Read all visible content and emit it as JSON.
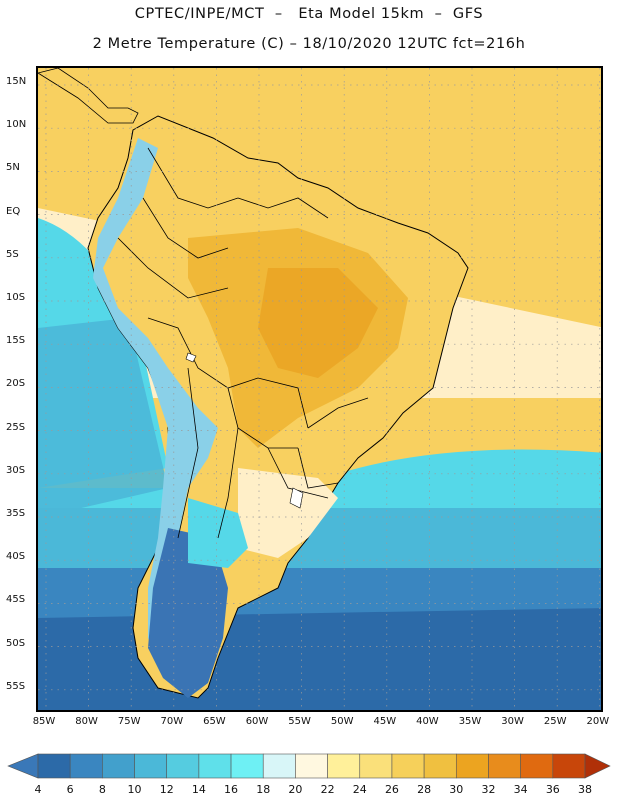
{
  "header": {
    "title_line1": "CPTEC/INPE/MCT  –   Eta Model 15km  –  GFS",
    "title_line2": "2 Metre Temperature (C) – 18/10/2020 12UTC fct=216h"
  },
  "map": {
    "lat_labels": [
      "15N",
      "10N",
      "5N",
      "EQ",
      "5S",
      "10S",
      "15S",
      "20S",
      "25S",
      "30S",
      "35S",
      "40S",
      "45S",
      "50S",
      "55S"
    ],
    "lon_labels": [
      "85W",
      "80W",
      "75W",
      "70W",
      "65W",
      "60W",
      "55W",
      "50W",
      "45W",
      "40W",
      "35W",
      "30W",
      "25W",
      "20W"
    ],
    "colors": {
      "ocean_cold": "#2c6aa8",
      "ocean_cool": "#3a86c0",
      "ocean_mid": "#4bb8d8",
      "ocean_warm": "#55d8e8",
      "pale": "#ffefc8",
      "warm": "#f8d060",
      "hot": "#f0b838",
      "hotter": "#e8a020",
      "andes": "#8ad0e8",
      "patagonia": "#3a74b4"
    }
  },
  "colorbar": {
    "labels": [
      "4",
      "6",
      "8",
      "10",
      "12",
      "14",
      "16",
      "18",
      "20",
      "22",
      "24",
      "26",
      "28",
      "30",
      "32",
      "34",
      "36",
      "38"
    ],
    "colors": [
      "#3a78b8",
      "#2c6aa8",
      "#3a86c0",
      "#42a0cc",
      "#4bb8d8",
      "#55cce0",
      "#5fe0ea",
      "#6ef0f4",
      "#d8f6f8",
      "#fff8e0",
      "#fff09a",
      "#fae07a",
      "#f6d05a",
      "#f0c040",
      "#eca420",
      "#e88c1c",
      "#e06a10",
      "#c8460a",
      "#b03008"
    ]
  }
}
